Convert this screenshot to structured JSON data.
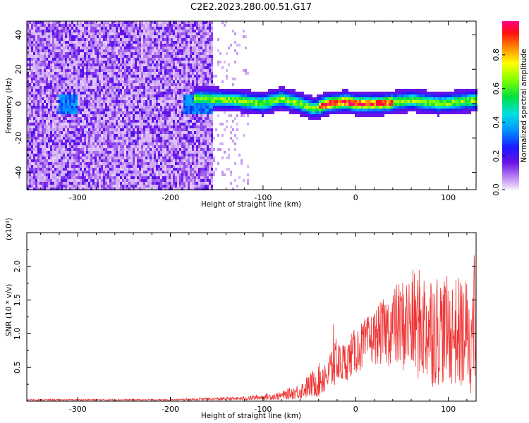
{
  "title": "C2E2.2023.280.00.51.G17",
  "chart_data": [
    {
      "type": "heatmap",
      "xlabel": "Height of straight line (km)",
      "ylabel": "Frequency (Hz)",
      "xlim": [
        -355,
        130
      ],
      "ylim": [
        -50,
        48
      ],
      "x_ticks": [
        -300,
        -200,
        -100,
        0,
        100
      ],
      "y_ticks": [
        -40,
        -20,
        0,
        20,
        40
      ],
      "colorbar": {
        "label": "Normalized spectral amplitude",
        "range": [
          0,
          1
        ],
        "ticks": [
          "0.0",
          "0.2",
          "0.4",
          "0.6",
          "0.8"
        ]
      },
      "ridge": {
        "x": [
          -170,
          -130,
          -100,
          -80,
          -60,
          -45,
          -30,
          -10,
          0,
          30,
          60,
          90,
          110,
          130
        ],
        "y": [
          3,
          2,
          0,
          3,
          0,
          -3,
          0,
          1,
          0,
          0,
          2,
          0,
          1,
          2
        ]
      }
    },
    {
      "type": "line",
      "xlabel": "Height of straight line (km)",
      "ylabel": "SNR (10 * v/v)",
      "multiplier": "(x10⁴)",
      "xlim": [
        -355,
        130
      ],
      "ylim": [
        0,
        2.5
      ],
      "x_ticks": [
        -300,
        -200,
        -100,
        0,
        100
      ],
      "y_ticks": [
        "0.5",
        "1.0",
        "1.5",
        "2.0"
      ],
      "series": [
        {
          "color": "#ef3434",
          "envelope": {
            "x": [
              -355,
              -200,
              -120,
              -80,
              -60,
              -40,
              -25,
              -10,
              0,
              20,
              40,
              60,
              80,
              100,
              130
            ],
            "mean": [
              0.02,
              0.02,
              0.04,
              0.08,
              0.15,
              0.3,
              0.5,
              0.6,
              0.75,
              0.95,
              1.1,
              1.15,
              1.1,
              1.05,
              0.95
            ],
            "amp": [
              0.01,
              0.01,
              0.03,
              0.06,
              0.12,
              0.25,
              0.35,
              0.3,
              0.35,
              0.4,
              0.6,
              0.8,
              0.9,
              0.8,
              0.9
            ]
          }
        }
      ]
    }
  ]
}
